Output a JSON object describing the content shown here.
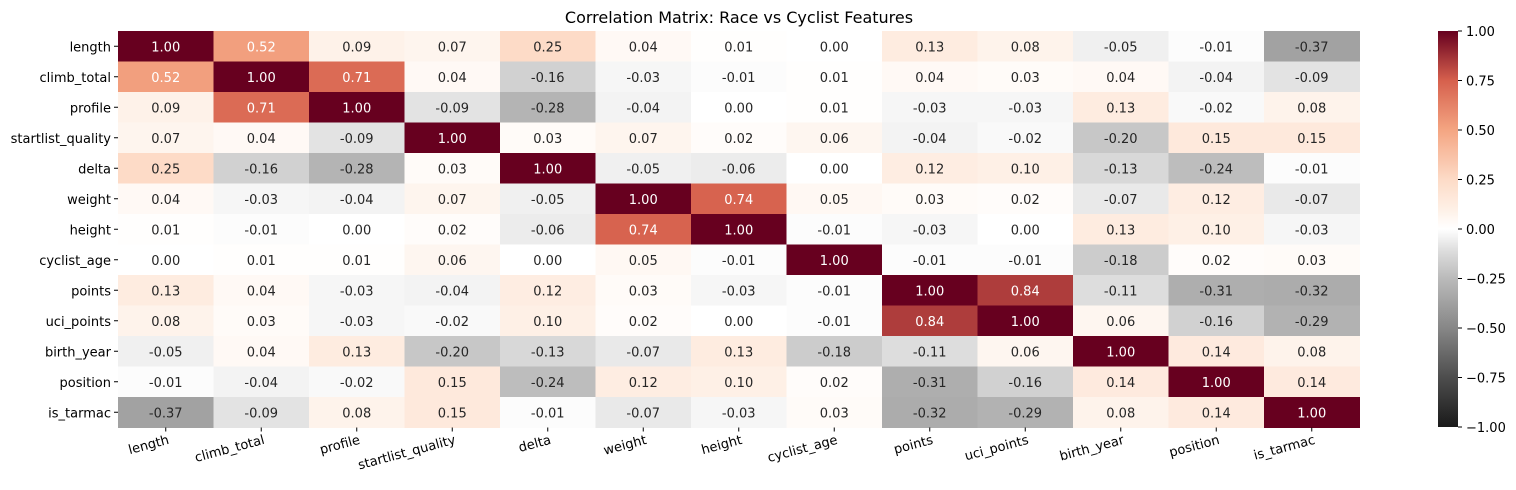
{
  "chart_data": {
    "type": "heatmap",
    "title": "Correlation Matrix: Race vs Cyclist Features",
    "row_labels": [
      "length",
      "climb_total",
      "profile",
      "startlist_quality",
      "delta",
      "weight",
      "height",
      "cyclist_age",
      "points",
      "uci_points",
      "birth_year",
      "position",
      "is_tarmac"
    ],
    "col_labels": [
      "length",
      "climb_total",
      "profile",
      "startlist_quality",
      "delta",
      "weight",
      "height",
      "cyclist_age",
      "points",
      "uci_points",
      "birth_year",
      "position",
      "is_tarmac"
    ],
    "values": [
      [
        1.0,
        0.52,
        0.09,
        0.07,
        0.25,
        0.04,
        0.01,
        0.0,
        0.13,
        0.08,
        -0.05,
        -0.01,
        -0.37
      ],
      [
        0.52,
        1.0,
        0.71,
        0.04,
        -0.16,
        -0.03,
        -0.01,
        0.01,
        0.04,
        0.03,
        0.04,
        -0.04,
        -0.09
      ],
      [
        0.09,
        0.71,
        1.0,
        -0.09,
        -0.28,
        -0.04,
        -0.0,
        0.01,
        -0.03,
        -0.03,
        0.13,
        -0.02,
        0.08
      ],
      [
        0.07,
        0.04,
        -0.09,
        1.0,
        0.03,
        0.07,
        0.02,
        0.06,
        -0.04,
        -0.02,
        -0.2,
        0.15,
        0.15
      ],
      [
        0.25,
        -0.16,
        -0.28,
        0.03,
        1.0,
        -0.05,
        -0.06,
        -0.0,
        0.12,
        0.1,
        -0.13,
        -0.24,
        -0.01
      ],
      [
        0.04,
        -0.03,
        -0.04,
        0.07,
        -0.05,
        1.0,
        0.74,
        0.05,
        0.03,
        0.02,
        -0.07,
        0.12,
        -0.07
      ],
      [
        0.01,
        -0.01,
        -0.0,
        0.02,
        -0.06,
        0.74,
        1.0,
        -0.01,
        -0.03,
        -0.0,
        0.13,
        0.1,
        -0.03
      ],
      [
        0.0,
        0.01,
        0.01,
        0.06,
        -0.0,
        0.05,
        -0.01,
        1.0,
        -0.01,
        -0.01,
        -0.18,
        0.02,
        0.03
      ],
      [
        0.13,
        0.04,
        -0.03,
        -0.04,
        0.12,
        0.03,
        -0.03,
        -0.01,
        1.0,
        0.84,
        -0.11,
        -0.31,
        -0.32
      ],
      [
        0.08,
        0.03,
        -0.03,
        -0.02,
        0.1,
        0.02,
        -0.0,
        -0.01,
        0.84,
        1.0,
        0.06,
        -0.16,
        -0.29
      ],
      [
        -0.05,
        0.04,
        0.13,
        -0.2,
        -0.13,
        -0.07,
        0.13,
        -0.18,
        -0.11,
        0.06,
        1.0,
        0.14,
        0.08
      ],
      [
        -0.01,
        -0.04,
        -0.02,
        0.15,
        -0.24,
        0.12,
        0.1,
        0.02,
        -0.31,
        -0.16,
        0.14,
        1.0,
        0.14
      ],
      [
        -0.37,
        -0.09,
        0.08,
        0.15,
        -0.01,
        -0.07,
        -0.03,
        0.03,
        -0.32,
        -0.29,
        0.08,
        0.14,
        1.0
      ]
    ],
    "value_format": "0.00",
    "colormap": "RdGy_r",
    "vmin": -1.0,
    "vmax": 1.0,
    "colorbar_ticks": [
      1.0,
      0.75,
      0.5,
      0.25,
      0.0,
      -0.25,
      -0.5,
      -0.75,
      -1.0
    ],
    "colorbar_tick_labels": [
      "1.00",
      "0.75",
      "0.50",
      "0.25",
      "0.00",
      "−0.25",
      "−0.50",
      "−0.75",
      "−1.00"
    ],
    "x_tick_rotation_deg": 15,
    "grid": false,
    "legend": "colorbar-right"
  }
}
